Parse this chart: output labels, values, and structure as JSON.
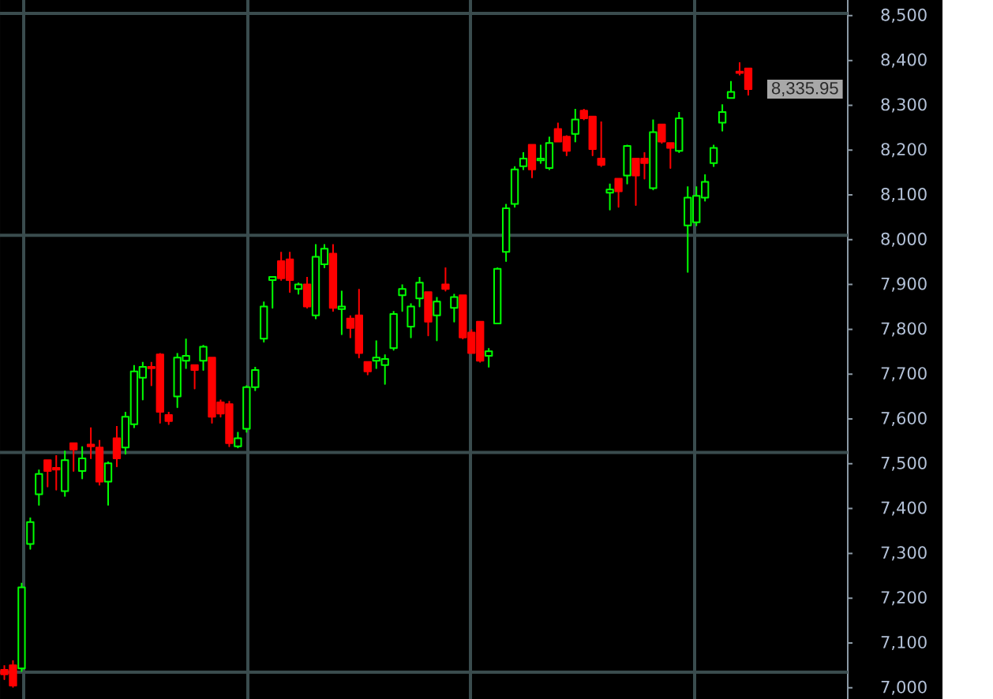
{
  "chart_data": {
    "type": "candlestick",
    "tick_labels": "y",
    "categories": [
      null,
      null,
      null,
      null,
      null,
      null,
      null,
      null,
      null,
      null,
      null,
      null,
      null,
      null,
      null,
      null,
      null,
      null,
      null,
      null,
      null,
      null,
      null,
      null,
      null,
      null,
      null,
      null,
      null,
      null,
      null,
      null,
      null,
      null,
      null,
      null,
      null,
      null,
      null,
      null,
      null,
      null,
      null,
      null,
      null,
      null,
      null,
      null,
      null,
      null,
      null,
      null,
      null,
      null,
      null,
      null,
      null,
      null,
      null,
      null,
      null,
      null,
      null,
      null,
      null,
      null,
      null,
      null,
      null,
      null,
      null,
      null,
      null,
      null,
      null,
      null,
      null,
      null,
      null,
      null,
      null,
      null,
      null,
      null,
      null,
      null,
      null,
      null,
      null,
      null,
      null,
      null,
      null,
      null,
      null,
      null,
      null,
      null
    ],
    "ohlc": [
      [
        7040,
        7050,
        7019,
        7030
      ],
      [
        7050,
        7061,
        7002,
        7005
      ],
      [
        7043,
        7234,
        7037,
        7224
      ],
      [
        7321,
        7380,
        7310,
        7370
      ],
      [
        7432,
        7487,
        7408,
        7477
      ],
      [
        7508,
        7508,
        7449,
        7484
      ],
      [
        7491,
        7519,
        7442,
        7487
      ],
      [
        7439,
        7529,
        7428,
        7508
      ],
      [
        7546,
        7546,
        7484,
        7532
      ],
      [
        7484,
        7539,
        7467,
        7512
      ],
      [
        7543,
        7581,
        7512,
        7539
      ],
      [
        7536,
        7553,
        7453,
        7460
      ],
      [
        7460,
        7505,
        7408,
        7501
      ],
      [
        7557,
        7584,
        7494,
        7512
      ],
      [
        7536,
        7616,
        7522,
        7605
      ],
      [
        7588,
        7720,
        7581,
        7706
      ],
      [
        7692,
        7727,
        7643,
        7716
      ],
      [
        7716,
        7727,
        7675,
        7713
      ],
      [
        7744,
        7747,
        7591,
        7616
      ],
      [
        7609,
        7616,
        7588,
        7595
      ],
      [
        7650,
        7747,
        7626,
        7737
      ],
      [
        7730,
        7779,
        7713,
        7741
      ],
      [
        7720,
        7720,
        7668,
        7709
      ],
      [
        7730,
        7765,
        7709,
        7761
      ],
      [
        7737,
        7737,
        7591,
        7605
      ],
      [
        7637,
        7643,
        7605,
        7612
      ],
      [
        7633,
        7640,
        7539,
        7546
      ],
      [
        7539,
        7571,
        7536,
        7557
      ],
      [
        7578,
        7675,
        7571,
        7671
      ],
      [
        7671,
        7716,
        7664,
        7709
      ],
      [
        7779,
        7862,
        7772,
        7851
      ],
      [
        7910,
        7917,
        7848,
        7917
      ],
      [
        7952,
        7973,
        7910,
        7914
      ],
      [
        7956,
        7973,
        7883,
        7910
      ],
      [
        7890,
        7904,
        7879,
        7900
      ],
      [
        7900,
        7917,
        7848,
        7851
      ],
      [
        7831,
        7990,
        7824,
        7962
      ],
      [
        7945,
        7990,
        7938,
        7980
      ],
      [
        7969,
        7990,
        7841,
        7848
      ],
      [
        7845,
        7886,
        7789,
        7851
      ],
      [
        7824,
        7831,
        7782,
        7803
      ],
      [
        7831,
        7890,
        7737,
        7747
      ],
      [
        7727,
        7727,
        7699,
        7706
      ],
      [
        7730,
        7775,
        7713,
        7737
      ],
      [
        7720,
        7744,
        7678,
        7734
      ],
      [
        7758,
        7841,
        7754,
        7834
      ],
      [
        7876,
        7900,
        7841,
        7890
      ],
      [
        7806,
        7858,
        7782,
        7851
      ],
      [
        7869,
        7917,
        7851,
        7904
      ],
      [
        7883,
        7883,
        7786,
        7817
      ],
      [
        7831,
        7872,
        7775,
        7862
      ],
      [
        7900,
        7938,
        7886,
        7890
      ],
      [
        7848,
        7879,
        7817,
        7872
      ],
      [
        7876,
        7876,
        7779,
        7782
      ],
      [
        7793,
        7800,
        7747,
        7747
      ],
      [
        7817,
        7817,
        7727,
        7730
      ],
      [
        7741,
        7758,
        7716,
        7751
      ],
      [
        7813,
        7938,
        7813,
        7935
      ],
      [
        7973,
        8080,
        7952,
        8070
      ],
      [
        8080,
        8164,
        8073,
        8157
      ],
      [
        8164,
        8195,
        8157,
        8181
      ],
      [
        8212,
        8212,
        8139,
        8157
      ],
      [
        8177,
        8212,
        8171,
        8181
      ],
      [
        8160,
        8230,
        8157,
        8216
      ],
      [
        8247,
        8261,
        8219,
        8219
      ],
      [
        8230,
        8233,
        8188,
        8198
      ],
      [
        8236,
        8292,
        8219,
        8268
      ],
      [
        8288,
        8292,
        8268,
        8271
      ],
      [
        8275,
        8275,
        8188,
        8202
      ],
      [
        8181,
        8264,
        8164,
        8167
      ],
      [
        8105,
        8125,
        8067,
        8112
      ],
      [
        8136,
        8136,
        8073,
        8108
      ],
      [
        8143,
        8212,
        8125,
        8209
      ],
      [
        8181,
        8181,
        8077,
        8143
      ],
      [
        8181,
        8195,
        8136,
        8171
      ],
      [
        8115,
        8268,
        8112,
        8240
      ],
      [
        8257,
        8257,
        8216,
        8219
      ],
      [
        8216,
        8216,
        8160,
        8205
      ],
      [
        8198,
        8285,
        8195,
        8271
      ],
      [
        8032,
        8119,
        7928,
        8094
      ],
      [
        8039,
        8119,
        8032,
        8098
      ],
      [
        8094,
        8146,
        8087,
        8129
      ],
      [
        8171,
        8212,
        8164,
        8205
      ],
      [
        8261,
        8302,
        8243,
        8285
      ],
      [
        8316,
        8354,
        8316,
        8330
      ],
      [
        8375,
        8396,
        8368,
        8372
      ],
      [
        8382,
        8382,
        8323,
        8335.95
      ],
      null,
      null,
      null,
      null,
      null,
      null,
      null,
      null,
      null,
      null,
      null
    ],
    "colors": [
      "#ff0000",
      "#ff0000",
      "#00ff00",
      "#00ff00",
      "#00ff00",
      "#ff0000",
      "#ff0000",
      "#00ff00",
      "#ff0000",
      "#00ff00",
      "#ff0000",
      "#ff0000",
      "#00ff00",
      "#ff0000",
      "#00ff00",
      "#00ff00",
      "#00ff00",
      "#ff0000",
      "#ff0000",
      "#ff0000",
      "#00ff00",
      "#00ff00",
      "#ff0000",
      "#00ff00",
      "#ff0000",
      "#ff0000",
      "#ff0000",
      "#00ff00",
      "#00ff00",
      "#00ff00",
      "#00ff00",
      "#00ff00",
      "#ff0000",
      "#ff0000",
      "#00ff00",
      "#ff0000",
      "#00ff00",
      "#00ff00",
      "#ff0000",
      "#00ff00",
      "#ff0000",
      "#ff0000",
      "#ff0000",
      "#00ff00",
      "#00ff00",
      "#00ff00",
      "#00ff00",
      "#00ff00",
      "#00ff00",
      "#ff0000",
      "#00ff00",
      "#ff0000",
      "#00ff00",
      "#ff0000",
      "#ff0000",
      "#ff0000",
      "#00ff00",
      "#00ff00",
      "#00ff00",
      "#00ff00",
      "#00ff00",
      "#ff0000",
      "#00ff00",
      "#00ff00",
      "#ff0000",
      "#ff0000",
      "#00ff00",
      "#ff0000",
      "#ff0000",
      "#ff0000",
      "#00ff00",
      "#ff0000",
      "#00ff00",
      "#ff0000",
      "#ff0000",
      "#00ff00",
      "#ff0000",
      "#ff0000",
      "#00ff00",
      "#00ff00",
      "#00ff00",
      "#00ff00",
      "#00ff00",
      "#00ff00",
      "#00ff00",
      "#ff0000",
      "#ff0000",
      null,
      null,
      null,
      null,
      null,
      null,
      null,
      null,
      null,
      null,
      null
    ],
    "ylim": [
      6975,
      8535
    ],
    "yticks": [
      {
        "value": 7000,
        "label": "7,000"
      },
      {
        "value": 7100,
        "label": "7,100"
      },
      {
        "value": 7200,
        "label": "7,200"
      },
      {
        "value": 7300,
        "label": "7,300"
      },
      {
        "value": 7400,
        "label": "7,400"
      },
      {
        "value": 7500,
        "label": "7,500"
      },
      {
        "value": 7600,
        "label": "7,600"
      },
      {
        "value": 7700,
        "label": "7,700"
      },
      {
        "value": 7800,
        "label": "7,800"
      },
      {
        "value": 7900,
        "label": "7,900"
      },
      {
        "value": 8000,
        "label": "8,000"
      },
      {
        "value": 8100,
        "label": "8,100"
      },
      {
        "value": 8200,
        "label": "8,200"
      },
      {
        "value": 8300,
        "label": "8,300"
      },
      {
        "value": 8400,
        "label": "8,400"
      },
      {
        "value": 8500,
        "label": "8,500"
      }
    ],
    "ref_lines": [
      {
        "axis": "y",
        "value": 8505,
        "color": "#3a4c4e"
      },
      {
        "axis": "y",
        "value": 8010,
        "color": "#3a4c4e"
      },
      {
        "axis": "y",
        "value": 7525,
        "color": "#3a4c4e"
      },
      {
        "axis": "y",
        "value": 7035,
        "color": "#3a4c4e"
      }
    ],
    "annotations": [
      "8,335.95"
    ]
  }
}
